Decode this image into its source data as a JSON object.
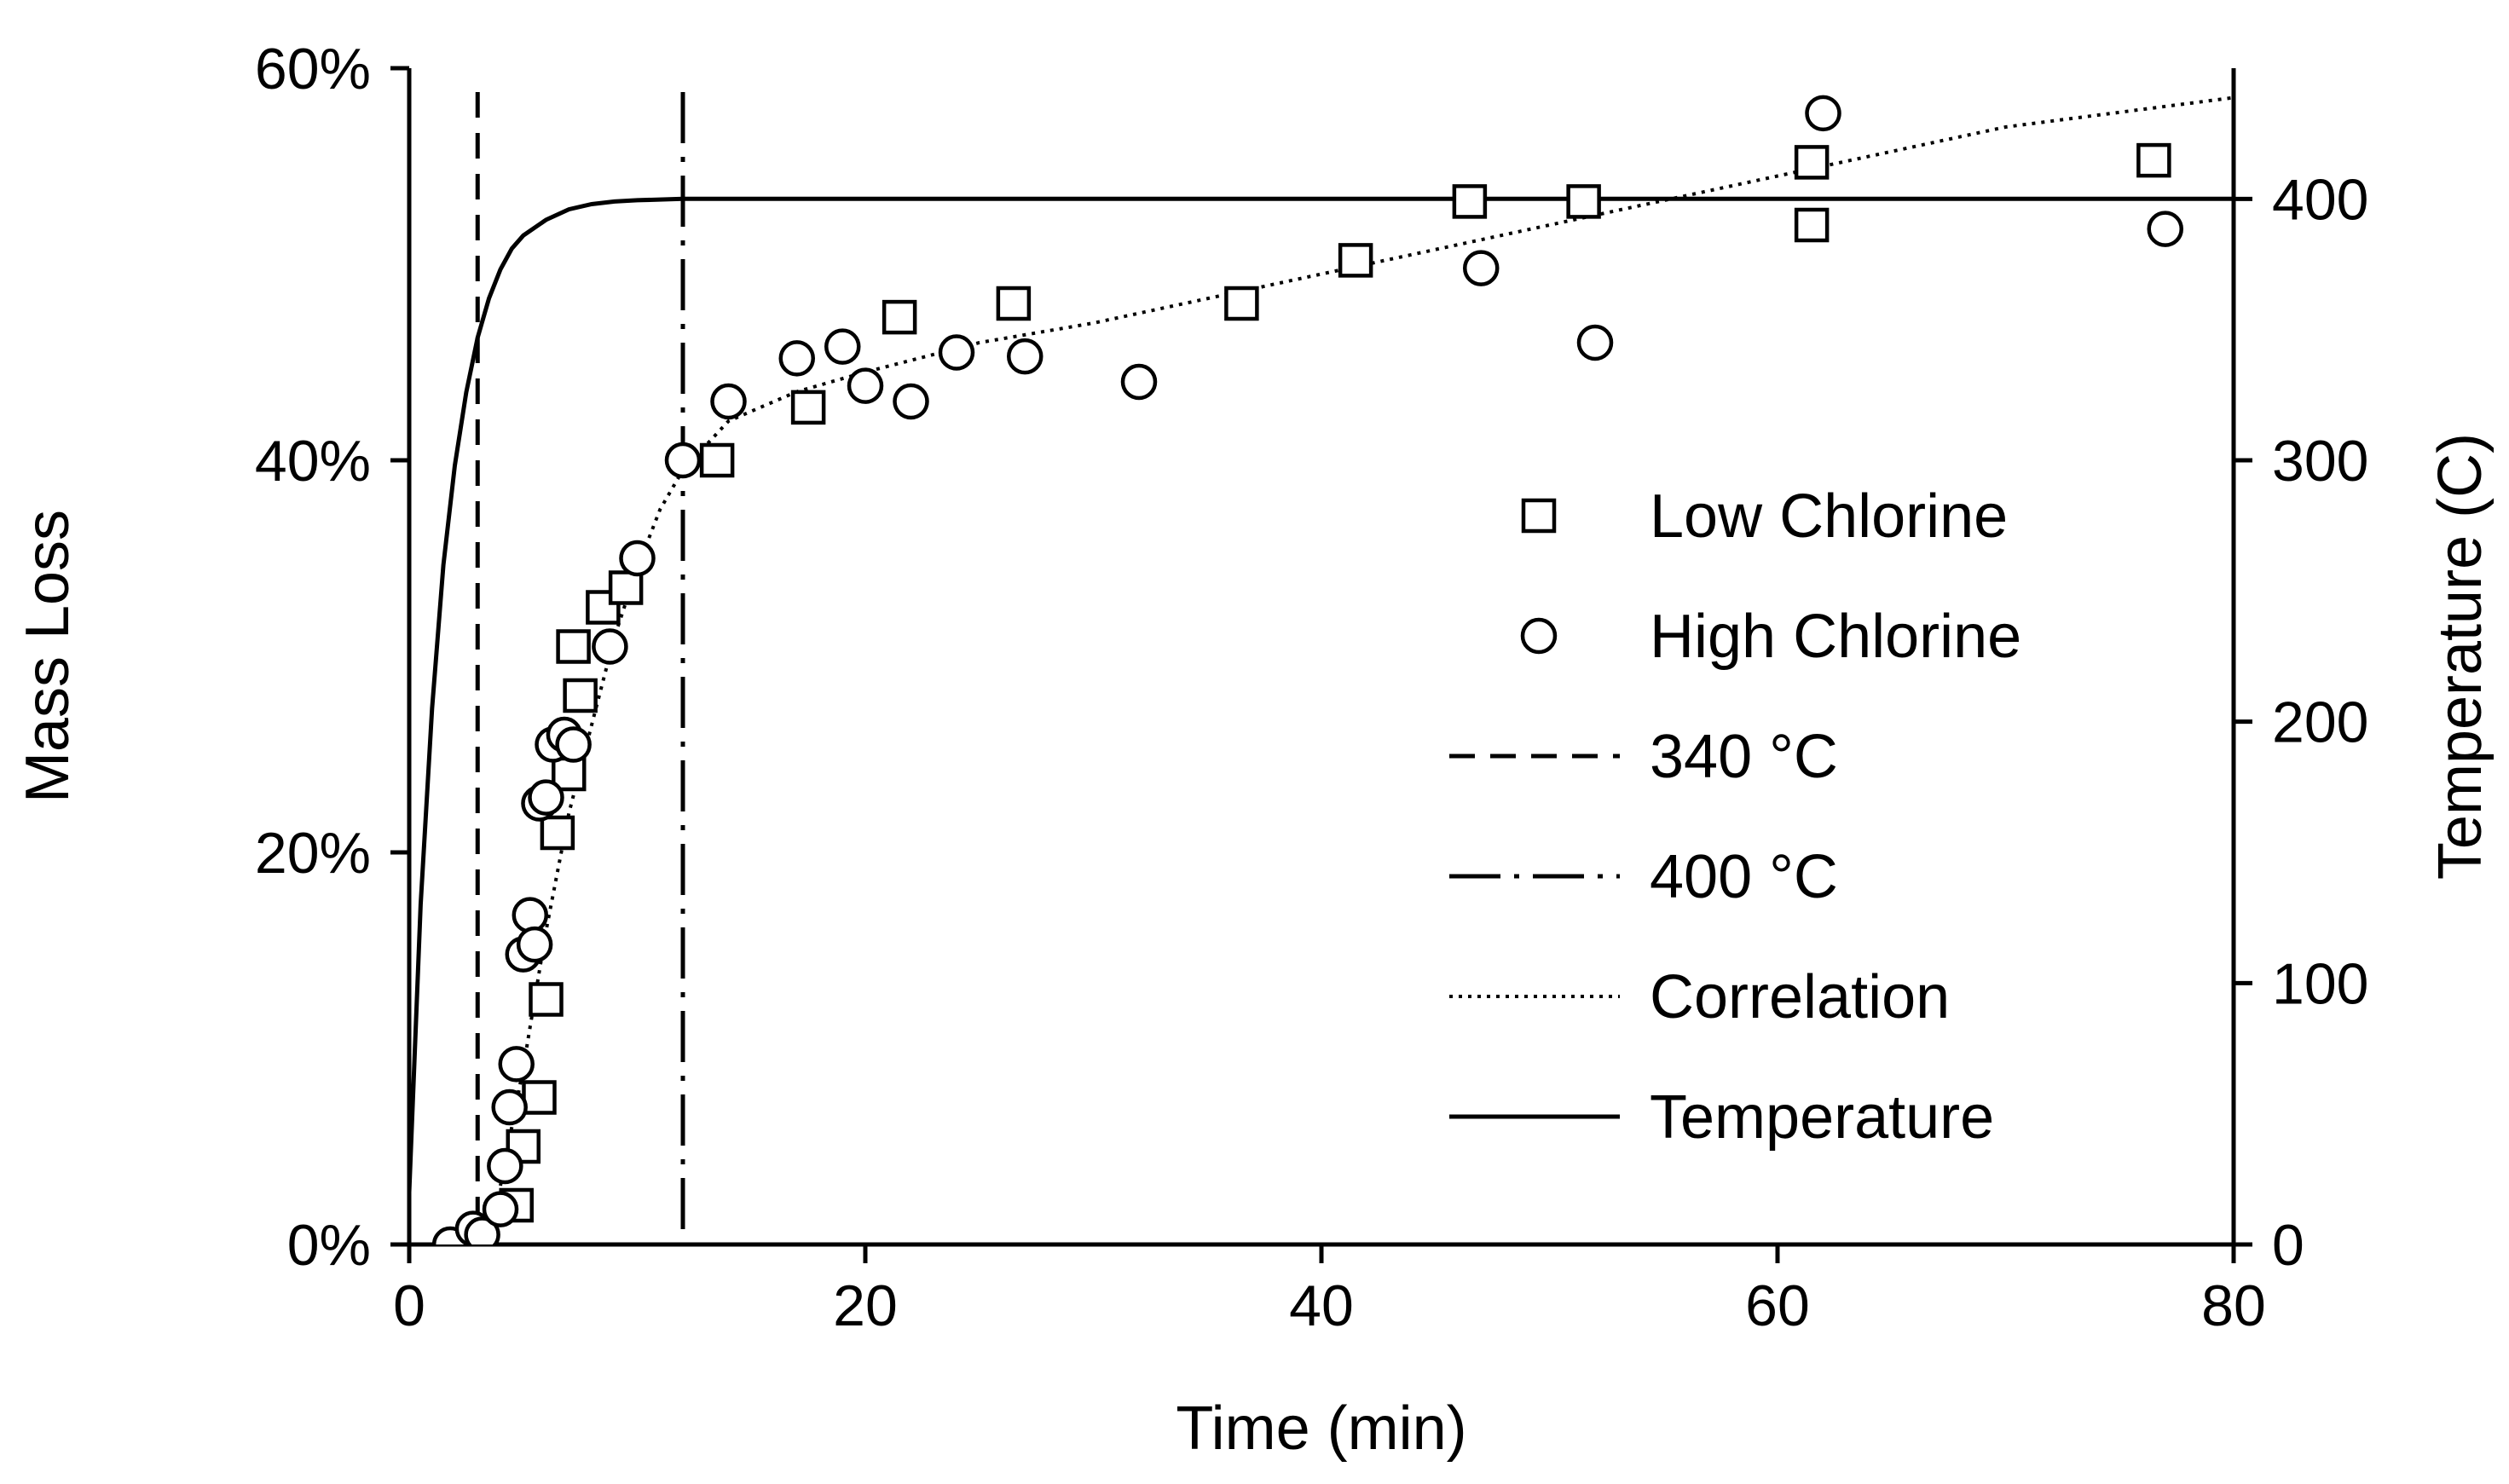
{
  "chart_data": {
    "type": "scatter",
    "title": "",
    "xlabel": "Time (min)",
    "ylabel": "Mass Loss",
    "y2label": "Temperature (C)",
    "xlim": [
      0,
      80
    ],
    "ylim": [
      0,
      60
    ],
    "y2lim": [
      0,
      450
    ],
    "x_ticks": [
      "0",
      "20",
      "40",
      "60",
      "80"
    ],
    "x_tick_values": [
      0,
      20,
      40,
      60,
      80
    ],
    "y_ticks": [
      "0%",
      "20%",
      "40%",
      "60%"
    ],
    "y_tick_values": [
      0,
      20,
      40,
      60
    ],
    "y2_ticks": [
      "0",
      "100",
      "200",
      "300",
      "400"
    ],
    "y2_tick_values": [
      0,
      100,
      200,
      300,
      400
    ],
    "grid": false,
    "legend_position": "right",
    "series": [
      {
        "name": "Low Chlorine",
        "marker": "square",
        "x": [
          3.0,
          4.7,
          5.0,
          5.7,
          6.0,
          6.5,
          7.0,
          7.2,
          7.5,
          8.5,
          9.5,
          13.5,
          17.5,
          21.5,
          26.5,
          36.5,
          41.5,
          46.5,
          51.5,
          61.5,
          61.5,
          76.5
        ],
        "y": [
          0,
          2,
          5,
          7.5,
          12.5,
          21,
          24,
          30.5,
          28,
          32.5,
          33.5,
          40,
          42.7,
          47.3,
          48,
          48,
          50.2,
          53.2,
          53.2,
          55.2,
          52,
          55.3
        ]
      },
      {
        "name": "High Chlorine",
        "marker": "circle",
        "x": [
          1.8,
          2.8,
          3.2,
          4.0,
          4.2,
          4.4,
          4.7,
          5.0,
          5.3,
          5.5,
          5.7,
          6.0,
          6.3,
          6.8,
          7.2,
          8.8,
          10.0,
          12.0,
          14.0,
          17.0,
          19.0,
          20.0,
          22.0,
          24.0,
          27.0,
          32.0,
          47.0,
          52.0,
          62.0,
          77.0
        ],
        "y": [
          0,
          0.8,
          0.5,
          1.8,
          4.0,
          7.0,
          9.2,
          14.8,
          16.8,
          15.3,
          22.5,
          22.8,
          25.5,
          26.0,
          25.5,
          30.5,
          35.0,
          40.0,
          43.0,
          45.2,
          45.8,
          43.8,
          43.0,
          45.5,
          45.3,
          44.0,
          49.8,
          46.0,
          57.7,
          51.8
        ]
      }
    ],
    "reference_lines": [
      {
        "name": "340 °C",
        "style": "dashed",
        "x": 3.0
      },
      {
        "name": "400 °C",
        "style": "dash-dot",
        "x": 12.0
      }
    ],
    "correlation": {
      "name": "Correlation",
      "style": "dotted",
      "x": [
        4.0,
        5.0,
        6.0,
        7.0,
        8.0,
        9.0,
        10.0,
        11.0,
        12.0,
        14.0,
        17.0,
        20.0,
        25.0,
        30.0,
        40.0,
        50.0,
        60.0,
        70.0,
        80.0
      ],
      "y": [
        3.0,
        9.0,
        16.0,
        22.0,
        26.5,
        31.0,
        34.5,
        37.5,
        39.5,
        42.0,
        43.5,
        44.5,
        46.0,
        47.0,
        49.5,
        52.0,
        54.5,
        57.0,
        58.5
      ]
    },
    "temperature": {
      "name": "Temperature",
      "style": "solid",
      "x": [
        0,
        0.5,
        1.0,
        1.5,
        2.0,
        2.5,
        3.0,
        3.5,
        4.0,
        4.5,
        5.0,
        6.0,
        7.0,
        8.0,
        9.0,
        10.0,
        12.0,
        16.0,
        20.0,
        40.0,
        60.0,
        80.0
      ],
      "y": [
        20,
        130,
        205,
        260,
        298,
        326,
        347,
        362,
        373,
        381,
        386,
        392,
        396,
        398,
        399,
        399.5,
        400,
        400,
        400,
        400,
        400,
        400
      ]
    },
    "legend": [
      {
        "label": "Low Chlorine",
        "symbol": "square"
      },
      {
        "label": "High Chlorine",
        "symbol": "circle"
      },
      {
        "label": "340 °C",
        "symbol": "dashed-line"
      },
      {
        "label": "400 °C",
        "symbol": "dash-dot-line"
      },
      {
        "label": "Correlation",
        "symbol": "dotted-line"
      },
      {
        "label": "Temperature",
        "symbol": "solid-line"
      }
    ]
  }
}
